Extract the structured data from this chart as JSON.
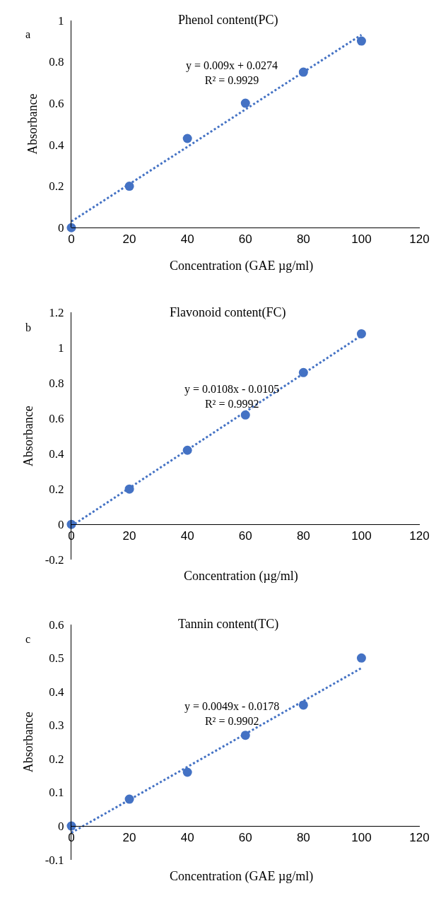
{
  "chart_data": [
    {
      "type": "scatter",
      "title": "Phenol content(PC)",
      "xlabel": "Concentration (GAE µg/ml)",
      "ylabel": "Absorbance",
      "marker": "circle",
      "xlim": [
        0,
        120
      ],
      "xticks": [
        0,
        20,
        40,
        60,
        80,
        100,
        120
      ],
      "ylim": [
        0,
        1
      ],
      "yticks": [
        0,
        0.2,
        0.4,
        0.6,
        0.8,
        1
      ],
      "annotations": [
        "a",
        "y = 0.009x + 0.0274\nR² = 0.9929"
      ],
      "series": [
        {
          "color": "#4472c4",
          "x": [
            0,
            20,
            40,
            60,
            80,
            100
          ],
          "values": [
            0,
            0.2,
            0.43,
            0.6,
            0.75,
            0.9
          ]
        },
        {
          "type": "line",
          "color": "#4472c4",
          "line_style": "dotted",
          "marker": "none",
          "x": [
            0,
            100
          ],
          "values": [
            0.03,
            0.93
          ]
        }
      ]
    },
    {
      "type": "scatter",
      "title": "Flavonoid content(FC)",
      "xlabel": "Concentration (µg/ml)",
      "ylabel": "Absorbance",
      "marker": "circle",
      "xlim": [
        0,
        120
      ],
      "xticks": [
        0,
        20,
        40,
        60,
        80,
        100,
        120
      ],
      "ylim": [
        -0.2,
        1.2
      ],
      "yticks": [
        -0.2,
        0,
        0.2,
        0.4,
        0.6,
        0.8,
        1,
        1.2
      ],
      "annotations": [
        "b",
        "y = 0.0108x - 0.0105\nR² = 0.9992"
      ],
      "series": [
        {
          "color": "#4472c4",
          "x": [
            0,
            20,
            40,
            60,
            80,
            100
          ],
          "values": [
            0,
            0.2,
            0.42,
            0.62,
            0.86,
            1.08
          ]
        },
        {
          "type": "line",
          "color": "#4472c4",
          "line_style": "dotted",
          "marker": "none",
          "x": [
            0,
            100
          ],
          "values": [
            -0.01,
            1.07
          ]
        }
      ]
    },
    {
      "type": "scatter",
      "title": "Tannin content(TC)",
      "xlabel": "Concentration (GAE µg/ml)",
      "ylabel": "Absorbance",
      "marker": "circle",
      "xlim": [
        0,
        120
      ],
      "xticks": [
        0,
        20,
        40,
        60,
        80,
        100,
        120
      ],
      "ylim": [
        -0.1,
        0.6
      ],
      "yticks": [
        -0.1,
        0,
        0.1,
        0.2,
        0.3,
        0.4,
        0.5,
        0.6
      ],
      "annotations": [
        "c",
        "y = 0.0049x - 0.0178\nR² = 0.9902"
      ],
      "series": [
        {
          "color": "#4472c4",
          "x": [
            0,
            20,
            40,
            60,
            80,
            100
          ],
          "values": [
            0,
            0.08,
            0.16,
            0.27,
            0.36,
            0.5
          ]
        },
        {
          "type": "line",
          "color": "#4472c4",
          "line_style": "dotted",
          "marker": "none",
          "x": [
            0,
            100
          ],
          "values": [
            -0.02,
            0.47
          ]
        }
      ]
    }
  ]
}
